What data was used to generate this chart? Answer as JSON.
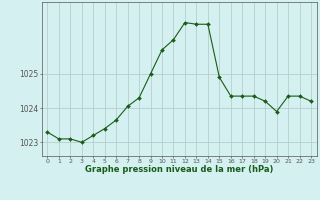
{
  "x": [
    0,
    1,
    2,
    3,
    4,
    5,
    6,
    7,
    8,
    9,
    10,
    11,
    12,
    13,
    14,
    15,
    16,
    17,
    18,
    19,
    20,
    21,
    22,
    23
  ],
  "y": [
    1023.3,
    1023.1,
    1023.1,
    1023.0,
    1023.2,
    1023.4,
    1023.65,
    1024.05,
    1024.3,
    1025.0,
    1025.7,
    1026.0,
    1026.5,
    1026.45,
    1026.45,
    1024.9,
    1024.35,
    1024.35,
    1024.35,
    1024.2,
    1023.9,
    1024.35,
    1024.35,
    1024.2
  ],
  "line_color": "#1a5c1a",
  "marker_color": "#1a5c1a",
  "bg_color": "#d4f0f0",
  "grid_color": "#b0c8c8",
  "axis_color": "#555555",
  "title": "Graphe pression niveau de la mer (hPa)",
  "title_color": "#1a5c1a",
  "ylim": [
    1022.6,
    1027.1
  ],
  "yticks": [
    1023,
    1024,
    1025
  ],
  "xlim": [
    -0.5,
    23.5
  ],
  "xticks": [
    0,
    1,
    2,
    3,
    4,
    5,
    6,
    7,
    8,
    9,
    10,
    11,
    12,
    13,
    14,
    15,
    16,
    17,
    18,
    19,
    20,
    21,
    22,
    23
  ],
  "figsize": [
    3.2,
    2.0
  ],
  "dpi": 100
}
